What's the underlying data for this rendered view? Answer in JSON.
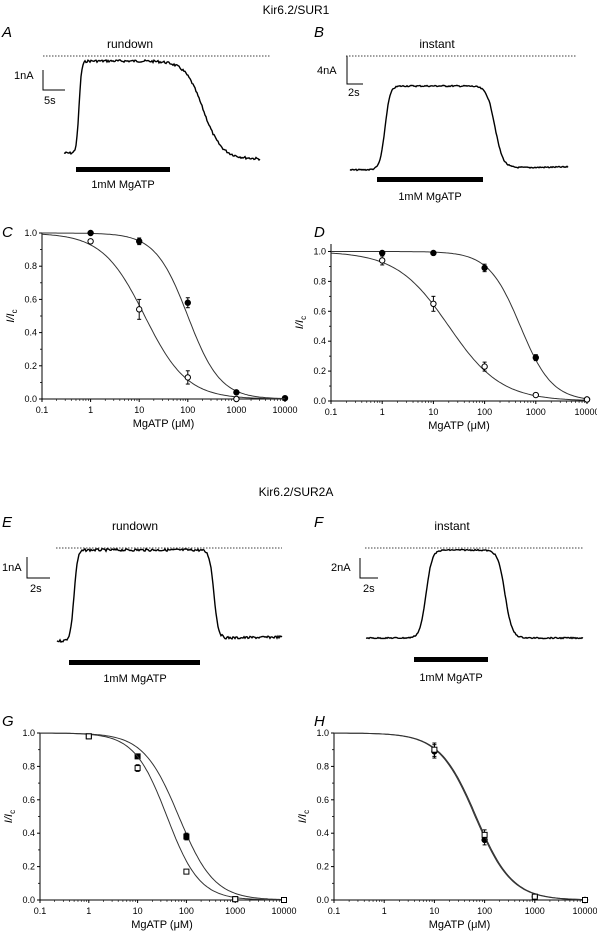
{
  "headings": {
    "sur1": "Kir6.2/SUR1",
    "sur2a": "Kir6.2/SUR2A"
  },
  "traces": [
    {
      "letter": "A",
      "label": "rundown",
      "amp": "1nA",
      "time": "5s",
      "drug": "1mM MgATP"
    },
    {
      "letter": "B",
      "label": "instant",
      "amp": "4nA",
      "time": "2s",
      "drug": "1mM MgATP"
    },
    {
      "letter": "E",
      "label": "rundown",
      "amp": "1nA",
      "time": "2s",
      "drug": "1mM MgATP"
    },
    {
      "letter": "F",
      "label": "instant",
      "amp": "2nA",
      "time": "2s",
      "drug": "1mM MgATP"
    }
  ],
  "chart_data": [
    {
      "panel": "C",
      "type": "scatter",
      "xscale": "log",
      "xlim": [
        0.1,
        10000
      ],
      "ylim": [
        0,
        1
      ],
      "xlabel_main": "MgATP (",
      "xlabel_unit": "μM)",
      "ylabel_main": "I/I",
      "ylabel_sub": "c",
      "xticks": [
        "0.1",
        "1",
        "10",
        "100",
        "1000",
        "10000"
      ],
      "yticks": [
        "0.0",
        "0.2",
        "0.4",
        "0.6",
        "0.8",
        "1.0"
      ],
      "series": [
        {
          "marker": "filled",
          "x": [
            1,
            10,
            100,
            1000,
            10000
          ],
          "y": [
            1.0,
            0.95,
            0.58,
            0.04,
            0.005
          ],
          "err": [
            0.01,
            0.02,
            0.03,
            0.01,
            0.005
          ],
          "fit": {
            "ic50": 100,
            "h": 1.3
          }
        },
        {
          "marker": "open",
          "x": [
            1,
            10,
            100,
            1000
          ],
          "y": [
            0.95,
            0.54,
            0.13,
            0.0
          ],
          "err": [
            0.01,
            0.06,
            0.04,
            0.005
          ],
          "fit": {
            "ic50": 13,
            "h": 1.0
          }
        }
      ]
    },
    {
      "panel": "D",
      "type": "scatter",
      "xscale": "log",
      "xlim": [
        0.1,
        10000
      ],
      "ylim": [
        0,
        1.05
      ],
      "xlabel_main": "MgATP (",
      "xlabel_unit": "μM)",
      "ylabel_main": "I/I",
      "ylabel_sub": "c",
      "xticks": [
        "0.1",
        "1",
        "10",
        "100",
        "1000",
        "10000"
      ],
      "yticks": [
        "0.0",
        "0.2",
        "0.4",
        "0.6",
        "0.8",
        "1.0"
      ],
      "series": [
        {
          "marker": "filled",
          "x": [
            1,
            10,
            100,
            1000,
            10000
          ],
          "y": [
            0.99,
            0.99,
            0.89,
            0.29,
            0.01
          ],
          "err": [
            0.005,
            0.005,
            0.025,
            0.02,
            0.005
          ],
          "fit": {
            "ic50": 500,
            "h": 1.4
          }
        },
        {
          "marker": "open",
          "x": [
            1,
            10,
            100,
            1000,
            10000
          ],
          "y": [
            0.94,
            0.65,
            0.23,
            0.04,
            0.01
          ],
          "err": [
            0.03,
            0.05,
            0.03,
            0.01,
            0.005
          ],
          "fit": {
            "ic50": 20,
            "h": 0.85
          }
        }
      ]
    },
    {
      "panel": "G",
      "type": "scatter",
      "xscale": "log",
      "xlim": [
        0.1,
        10000
      ],
      "ylim": [
        0,
        1
      ],
      "xlabel_main": "MgATP (",
      "xlabel_unit": "μM)",
      "ylabel_main": "I/I",
      "ylabel_sub": "c",
      "xticks": [
        "0.1",
        "1",
        "10",
        "100",
        "1000",
        "10000"
      ],
      "yticks": [
        "0.0",
        "0.2",
        "0.4",
        "0.6",
        "0.8",
        "1.0"
      ],
      "series": [
        {
          "marker": "filled-square",
          "x": [
            1,
            10,
            100,
            1000,
            10000
          ],
          "y": [
            0.98,
            0.86,
            0.38,
            0.005,
            0.0
          ],
          "err": [
            0.01,
            0.01,
            0.02,
            0.004,
            0.002
          ],
          "fit": {
            "ic50": 70,
            "h": 1.2
          }
        },
        {
          "marker": "open-square",
          "x": [
            1,
            10,
            100,
            1000,
            10000
          ],
          "y": [
            0.98,
            0.79,
            0.17,
            0.005,
            0.0
          ],
          "err": [
            0.01,
            0.02,
            0.01,
            0.004,
            0.002
          ],
          "fit": {
            "ic50": 40,
            "h": 1.3
          }
        }
      ]
    },
    {
      "panel": "H",
      "type": "scatter",
      "xscale": "log",
      "xlim": [
        0.1,
        10000
      ],
      "ylim": [
        0,
        1
      ],
      "xlabel_main": "MgATP (",
      "xlabel_unit": "μM)",
      "ylabel_main": "I/I",
      "ylabel_sub": "c",
      "xticks": [
        "0.1",
        "1",
        "10",
        "100",
        "1000",
        "10000"
      ],
      "yticks": [
        "0.0",
        "0.2",
        "0.4",
        "0.6",
        "0.8",
        "1.0"
      ],
      "series": [
        {
          "marker": "filled",
          "x": [
            10,
            100,
            1000,
            10000
          ],
          "y": [
            0.89,
            0.36,
            0.02,
            0.0
          ],
          "err": [
            0.04,
            0.03,
            0.01,
            0.003
          ],
          "fit": {
            "ic50": 65,
            "h": 1.2
          }
        },
        {
          "marker": "open-square",
          "x": [
            10,
            100,
            1000,
            10000
          ],
          "y": [
            0.9,
            0.39,
            0.02,
            0.0
          ],
          "err": [
            0.04,
            0.03,
            0.01,
            0.003
          ],
          "fit": {
            "ic50": 68,
            "h": 1.2
          }
        }
      ]
    }
  ]
}
